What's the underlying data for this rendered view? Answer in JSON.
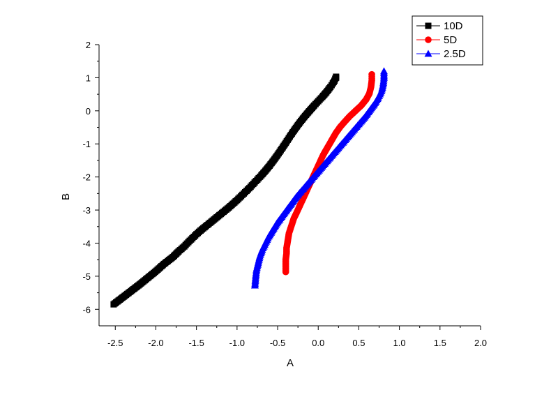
{
  "chart_data": {
    "type": "scatter",
    "title": "",
    "xlabel": "A",
    "ylabel": "B",
    "xlim": [
      -2.7,
      2.0
    ],
    "ylim": [
      -6.5,
      2.0
    ],
    "x_ticks": [
      -2.5,
      -2.0,
      -1.5,
      -1.0,
      -0.5,
      0.0,
      0.5,
      1.0,
      1.5,
      2.0
    ],
    "x_tick_labels": [
      "-2.5",
      "-2.0",
      "-1.5",
      "-1.0",
      "-0.5",
      "0.0",
      "0.5",
      "1.0",
      "1.5",
      "2.0"
    ],
    "y_ticks": [
      -6,
      -5,
      -4,
      -3,
      -2,
      -1,
      0,
      1,
      2
    ],
    "y_tick_labels": [
      "-6",
      "-5",
      "-4",
      "-3",
      "-2",
      "-1",
      "0",
      "1",
      "2"
    ],
    "grid": false,
    "legend_position": "top-right",
    "series": [
      {
        "name": "10D",
        "color": "#000000",
        "marker": "square",
        "x": [
          -2.52,
          -2.2,
          -2.01,
          -1.9,
          -1.79,
          -1.72,
          -1.65,
          -1.6,
          -1.55,
          -1.5,
          -1.45,
          -1.4,
          -1.35,
          -1.3,
          -1.25,
          -1.2,
          -1.15,
          -1.1,
          -1.05,
          -1.0,
          -0.95,
          -0.9,
          -0.85,
          -0.8,
          -0.75,
          -0.7,
          -0.65,
          -0.6,
          -0.55,
          -0.5,
          -0.45,
          -0.4,
          -0.35,
          -0.3,
          -0.25,
          -0.2,
          -0.15,
          -0.1,
          -0.05,
          0.0,
          0.05,
          0.1,
          0.15,
          0.18,
          0.2,
          0.21,
          0.22,
          0.22
        ],
        "y": [
          -5.85,
          -5.25,
          -4.87,
          -4.63,
          -4.42,
          -4.25,
          -4.1,
          -3.97,
          -3.85,
          -3.73,
          -3.62,
          -3.52,
          -3.42,
          -3.32,
          -3.22,
          -3.12,
          -3.02,
          -2.92,
          -2.81,
          -2.7,
          -2.58,
          -2.46,
          -2.34,
          -2.21,
          -2.08,
          -1.95,
          -1.81,
          -1.66,
          -1.5,
          -1.33,
          -1.15,
          -0.97,
          -0.78,
          -0.6,
          -0.43,
          -0.27,
          -0.12,
          0.02,
          0.16,
          0.29,
          0.42,
          0.56,
          0.72,
          0.83,
          0.91,
          0.97,
          1.0,
          1.03
        ]
      },
      {
        "name": "5D",
        "color": "#ff0000",
        "marker": "circle",
        "x": [
          -0.4,
          -0.4,
          -0.39,
          -0.39,
          -0.38,
          -0.37,
          -0.36,
          -0.34,
          -0.32,
          -0.3,
          -0.27,
          -0.24,
          -0.21,
          -0.18,
          -0.15,
          -0.12,
          -0.09,
          -0.06,
          -0.03,
          0.0,
          0.03,
          0.06,
          0.1,
          0.14,
          0.18,
          0.22,
          0.27,
          0.33,
          0.39,
          0.46,
          0.53,
          0.59,
          0.63,
          0.65,
          0.66,
          0.66
        ],
        "y": [
          -4.87,
          -4.5,
          -4.3,
          -4.15,
          -4.0,
          -3.85,
          -3.7,
          -3.55,
          -3.4,
          -3.25,
          -3.1,
          -2.94,
          -2.78,
          -2.62,
          -2.46,
          -2.3,
          -2.14,
          -1.98,
          -1.82,
          -1.66,
          -1.5,
          -1.34,
          -1.17,
          -1.0,
          -0.83,
          -0.66,
          -0.49,
          -0.32,
          -0.16,
          0.0,
          0.16,
          0.34,
          0.52,
          0.72,
          0.92,
          1.1
        ]
      },
      {
        "name": "2.5D",
        "color": "#0000ff",
        "marker": "triangle",
        "x": [
          -0.78,
          -0.77,
          -0.76,
          -0.74,
          -0.72,
          -0.69,
          -0.65,
          -0.61,
          -0.56,
          -0.51,
          -0.45,
          -0.39,
          -0.33,
          -0.27,
          -0.2,
          -0.13,
          -0.06,
          0.01,
          0.08,
          0.15,
          0.22,
          0.29,
          0.36,
          0.43,
          0.5,
          0.57,
          0.63,
          0.69,
          0.74,
          0.78,
          0.8,
          0.81,
          0.81
        ],
        "y": [
          -5.28,
          -5.0,
          -4.8,
          -4.6,
          -4.4,
          -4.2,
          -4.0,
          -3.8,
          -3.6,
          -3.4,
          -3.2,
          -3.0,
          -2.8,
          -2.6,
          -2.4,
          -2.2,
          -2.0,
          -1.8,
          -1.6,
          -1.4,
          -1.2,
          -1.0,
          -0.8,
          -0.6,
          -0.4,
          -0.2,
          0.0,
          0.2,
          0.4,
          0.6,
          0.8,
          1.0,
          1.2
        ]
      }
    ]
  }
}
